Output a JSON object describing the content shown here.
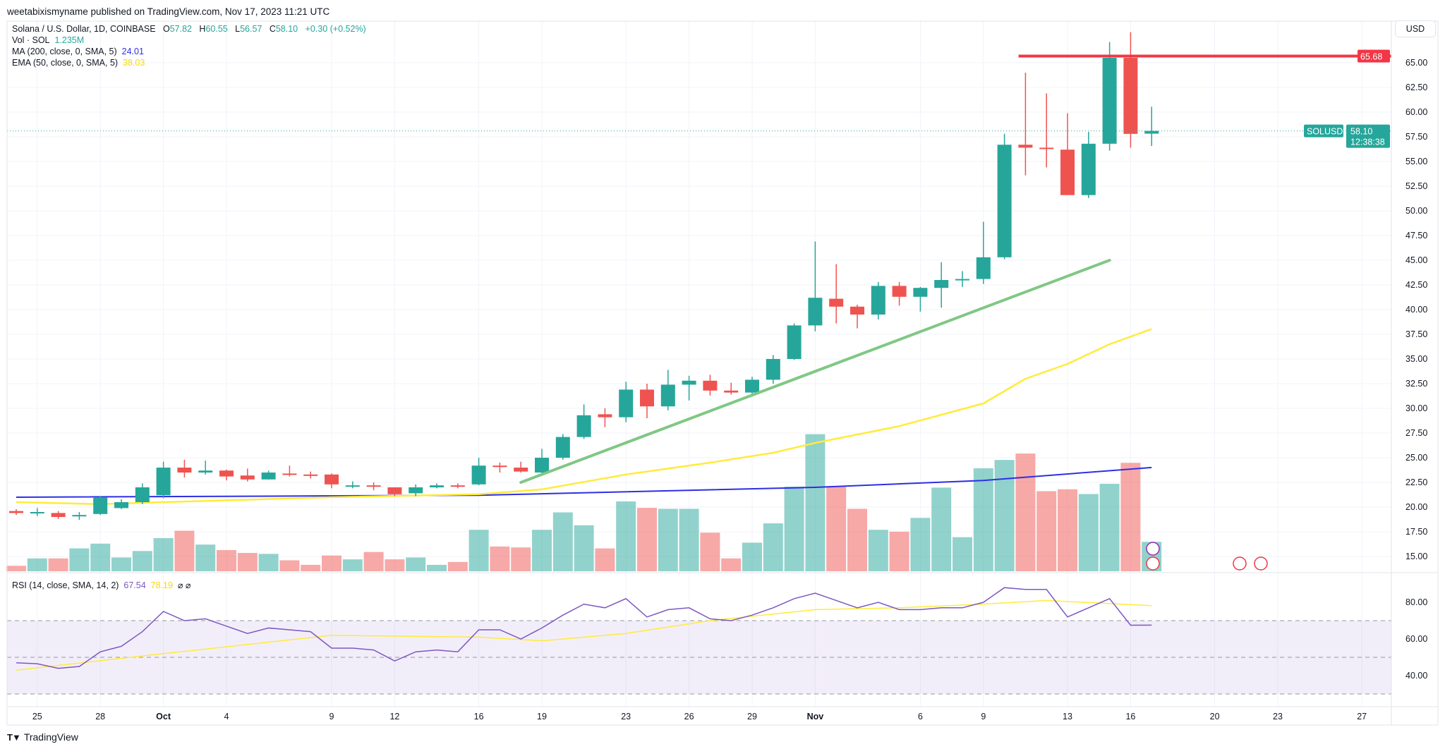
{
  "publisher": "weetabixismyname published on TradingView.com, Nov 17, 2023 11:21 UTC",
  "legend": {
    "symbol": "Solana / U.S. Dollar, 1D, COINBASE",
    "o_label": "O",
    "o": "57.82",
    "h_label": "H",
    "h": "60.55",
    "l_label": "L",
    "l": "56.57",
    "c_label": "C",
    "c": "58.10",
    "change": "+0.30 (+0.52%)",
    "vol_label": "Vol · SOL",
    "vol": "1.235M",
    "ma_label": "MA (200, close, 0, SMA, 5)",
    "ma": "24.01",
    "ema_label": "EMA (50, close, 0, SMA, 5)",
    "ema": "38.03",
    "rsi_label": "RSI (14, close, SMA, 14, 2)",
    "rsi": "67.54",
    "rsi_sma": "78.19",
    "rsi_extra": "⌀ ⌀"
  },
  "axis": {
    "currency": "USD",
    "price_ticks": [
      "15.00",
      "17.50",
      "20.00",
      "22.50",
      "25.00",
      "27.50",
      "30.00",
      "32.50",
      "35.00",
      "37.50",
      "40.00",
      "42.50",
      "45.00",
      "47.50",
      "50.00",
      "52.50",
      "55.00",
      "57.50",
      "60.00",
      "62.50",
      "65.00"
    ],
    "rsi_ticks": [
      "40.00",
      "60.00",
      "80.00"
    ],
    "x_ticks": [
      {
        "date": "Sep 25",
        "label": "25"
      },
      {
        "date": "Sep 28",
        "label": "28"
      },
      {
        "date": "Oct 1",
        "label": "Oct",
        "bold": true
      },
      {
        "date": "Oct 4",
        "label": "4"
      },
      {
        "date": "Oct 9",
        "label": "9"
      },
      {
        "date": "Oct 12",
        "label": "12"
      },
      {
        "date": "Oct 16",
        "label": "16"
      },
      {
        "date": "Oct 19",
        "label": "19"
      },
      {
        "date": "Oct 23",
        "label": "23"
      },
      {
        "date": "Oct 26",
        "label": "26"
      },
      {
        "date": "Oct 29",
        "label": "29"
      },
      {
        "date": "Nov 1",
        "label": "Nov",
        "bold": true
      },
      {
        "date": "Nov 6",
        "label": "6"
      },
      {
        "date": "Nov 9",
        "label": "9"
      },
      {
        "date": "Nov 13",
        "label": "13"
      },
      {
        "date": "Nov 16",
        "label": "16"
      },
      {
        "date": "Nov 20",
        "label": "20"
      },
      {
        "date": "Nov 23",
        "label": "23"
      },
      {
        "date": "Nov 27",
        "label": "27"
      }
    ]
  },
  "price_labels": {
    "resistance": "65.68",
    "symbol_tag": "SOLUSD",
    "last_price": "58.10",
    "countdown": "12:38:38"
  },
  "footer": {
    "brand": "TradingView"
  },
  "colors": {
    "up": "#26a69a",
    "down": "#ef5350",
    "ma": "#2e2ee6",
    "ema": "#ffeb3b",
    "trend": "#81c784",
    "resistance": "#f23645",
    "rsi": "#7e57c2",
    "rsi_sma": "#ffeb3b"
  },
  "chart_data": {
    "type": "candlestick",
    "title": "Solana / U.S. Dollar, 1D, COINBASE",
    "ylim": [
      13.5,
      68.5
    ],
    "grid": true,
    "columns": [
      "date",
      "open",
      "high",
      "low",
      "close",
      "volume_M"
    ],
    "candles": [
      [
        "Sep 24",
        19.6,
        19.8,
        19.2,
        19.4,
        0.23
      ],
      [
        "Sep 25",
        19.5,
        19.9,
        19.1,
        19.5,
        0.54
      ],
      [
        "Sep 26",
        19.4,
        19.6,
        18.8,
        19.0,
        0.54
      ],
      [
        "Sep 27",
        19.1,
        19.5,
        18.7,
        19.2,
        0.96
      ],
      [
        "Sep 28",
        19.3,
        21.1,
        19.2,
        21.0,
        1.16
      ],
      [
        "Sep 29",
        19.9,
        20.8,
        19.8,
        20.5,
        0.58
      ],
      [
        "Sep 30",
        20.5,
        22.4,
        20.3,
        22.0,
        0.85
      ],
      [
        "Oct 1",
        21.2,
        24.6,
        20.9,
        24.0,
        1.39
      ],
      [
        "Oct 2",
        24.0,
        24.8,
        23.0,
        23.5,
        1.7
      ],
      [
        "Oct 3",
        23.5,
        24.7,
        23.3,
        23.7,
        1.12
      ],
      [
        "Oct 4",
        23.7,
        23.8,
        22.7,
        23.1,
        0.89
      ],
      [
        "Oct 5",
        23.2,
        23.9,
        22.6,
        22.8,
        0.77
      ],
      [
        "Oct 6",
        22.8,
        23.7,
        22.8,
        23.5,
        0.73
      ],
      [
        "Oct 7",
        23.4,
        24.2,
        23.1,
        23.3,
        0.46
      ],
      [
        "Oct 8",
        23.3,
        23.6,
        22.9,
        23.2,
        0.27
      ],
      [
        "Oct 9",
        23.3,
        23.4,
        21.9,
        22.3,
        0.66
      ],
      [
        "Oct 10",
        22.1,
        22.6,
        21.9,
        22.2,
        0.5
      ],
      [
        "Oct 11",
        22.2,
        22.5,
        21.7,
        22.1,
        0.81
      ],
      [
        "Oct 12",
        22.0,
        22.0,
        21.1,
        21.3,
        0.5
      ],
      [
        "Oct 13",
        21.4,
        22.3,
        21.1,
        22.0,
        0.58
      ],
      [
        "Oct 14",
        22.0,
        22.4,
        21.9,
        22.2,
        0.27
      ],
      [
        "Oct 15",
        22.2,
        22.4,
        21.9,
        22.1,
        0.39
      ],
      [
        "Oct 16",
        22.3,
        25.0,
        22.2,
        24.2,
        1.74
      ],
      [
        "Oct 17",
        24.2,
        24.5,
        23.5,
        24.1,
        1.04
      ],
      [
        "Oct 18",
        24.0,
        24.6,
        23.5,
        23.6,
        1.0
      ],
      [
        "Oct 19",
        23.5,
        25.9,
        23.2,
        25.0,
        1.74
      ],
      [
        "Oct 20",
        25.0,
        27.4,
        24.8,
        27.1,
        2.47
      ],
      [
        "Oct 21",
        27.1,
        30.4,
        26.9,
        29.3,
        1.93
      ],
      [
        "Oct 22",
        29.4,
        30.0,
        28.1,
        29.1,
        0.96
      ],
      [
        "Oct 23",
        29.1,
        32.7,
        28.6,
        31.9,
        2.93
      ],
      [
        "Oct 24",
        31.9,
        32.5,
        29.0,
        30.2,
        2.66
      ],
      [
        "Oct 25",
        30.2,
        33.9,
        29.8,
        32.4,
        2.62
      ],
      [
        "Oct 26",
        32.4,
        33.3,
        30.8,
        32.8,
        2.62
      ],
      [
        "Oct 27",
        32.8,
        33.4,
        31.3,
        31.8,
        1.62
      ],
      [
        "Oct 28",
        31.8,
        32.6,
        31.4,
        31.6,
        0.54
      ],
      [
        "Oct 29",
        31.6,
        33.2,
        31.4,
        32.9,
        1.2
      ],
      [
        "Oct 30",
        32.9,
        35.4,
        32.5,
        35.0,
        2.01
      ],
      [
        "Oct 31",
        35.0,
        38.6,
        34.9,
        38.4,
        3.55
      ],
      [
        "Nov 1",
        38.4,
        46.9,
        37.8,
        41.2,
        5.75
      ],
      [
        "Nov 2",
        41.1,
        44.6,
        38.6,
        40.3,
        3.55
      ],
      [
        "Nov 3",
        40.3,
        40.5,
        38.1,
        39.5,
        2.62
      ],
      [
        "Nov 4",
        39.5,
        42.8,
        39.0,
        42.4,
        1.74
      ],
      [
        "Nov 5",
        42.4,
        42.8,
        40.4,
        41.3,
        1.66
      ],
      [
        "Nov 6",
        41.3,
        42.3,
        39.8,
        42.2,
        2.24
      ],
      [
        "Nov 7",
        42.2,
        44.8,
        40.2,
        43.0,
        3.51
      ],
      [
        "Nov 8",
        43.0,
        43.9,
        42.3,
        43.1,
        1.43
      ],
      [
        "Nov 9",
        43.1,
        48.9,
        42.6,
        45.3,
        4.32
      ],
      [
        "Nov 10",
        45.3,
        57.8,
        45.1,
        56.7,
        4.67
      ],
      [
        "Nov 11",
        56.7,
        64.0,
        53.6,
        56.4,
        4.94
      ],
      [
        "Nov 12",
        56.4,
        61.9,
        54.4,
        56.3,
        3.36
      ],
      [
        "Nov 13",
        56.2,
        59.9,
        51.6,
        51.6,
        3.44
      ],
      [
        "Nov 14",
        51.6,
        58.0,
        51.3,
        56.8,
        3.24
      ],
      [
        "Nov 15",
        56.8,
        67.1,
        56.1,
        65.5,
        3.67
      ],
      [
        "Nov 16",
        65.5,
        68.1,
        56.4,
        57.8,
        4.55
      ],
      [
        "Nov 17",
        57.82,
        60.55,
        56.57,
        58.1,
        1.235
      ]
    ],
    "ma200": [
      [
        "Sep 24",
        21.0
      ],
      [
        "Oct 16",
        21.2
      ],
      [
        "Nov 1",
        22.0
      ],
      [
        "Nov 9",
        22.7
      ],
      [
        "Nov 17",
        24.01
      ]
    ],
    "ema50": [
      [
        "Sep 24",
        20.5
      ],
      [
        "Sep 28",
        20.3
      ],
      [
        "Oct 1",
        20.5
      ],
      [
        "Oct 9",
        21.0
      ],
      [
        "Oct 16",
        21.3
      ],
      [
        "Oct 19",
        21.8
      ],
      [
        "Oct 23",
        23.3
      ],
      [
        "Oct 27",
        24.5
      ],
      [
        "Oct 30",
        25.5
      ],
      [
        "Nov 1",
        26.5
      ],
      [
        "Nov 5",
        28.2
      ],
      [
        "Nov 9",
        30.5
      ],
      [
        "Nov 11",
        33.0
      ],
      [
        "Nov 13",
        34.5
      ],
      [
        "Nov 15",
        36.5
      ],
      [
        "Nov 17",
        38.03
      ]
    ],
    "trendline": [
      [
        "Oct 18",
        22.5
      ],
      [
        "Nov 15",
        45.0
      ]
    ],
    "resistance": {
      "from": "Nov 10",
      "price": 65.68
    },
    "rsi": {
      "ylim": [
        25,
        95
      ],
      "bands": [
        30,
        50,
        70
      ],
      "values": [
        47,
        46.5,
        44,
        45,
        53,
        56,
        64,
        75,
        70,
        71,
        67,
        63,
        66,
        65,
        64,
        55,
        55,
        54,
        48,
        53,
        54,
        53,
        65,
        65,
        60,
        66,
        73,
        79,
        77,
        82,
        72,
        76,
        77,
        71,
        70,
        73,
        77,
        82,
        85,
        81,
        77,
        80,
        76,
        76,
        77,
        77,
        80,
        88,
        87,
        87,
        72,
        77,
        82,
        67.5,
        67.54
      ],
      "sma": [
        [
          "Sep 24",
          43
        ],
        [
          "Oct 1",
          52
        ],
        [
          "Oct 9",
          62
        ],
        [
          "Oct 16",
          61
        ],
        [
          "Oct 19",
          59
        ],
        [
          "Oct 23",
          63
        ],
        [
          "Oct 27",
          70
        ],
        [
          "Nov 1",
          76
        ],
        [
          "Nov 5",
          77
        ],
        [
          "Nov 9",
          79
        ],
        [
          "Nov 12",
          81
        ],
        [
          "Nov 17",
          78.19
        ]
      ]
    }
  }
}
